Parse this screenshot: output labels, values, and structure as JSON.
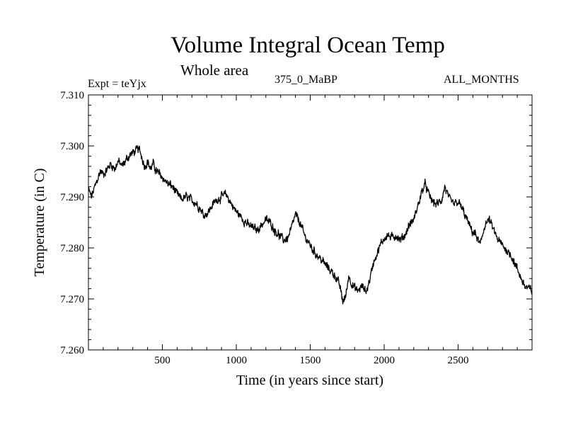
{
  "chart_data": {
    "type": "line",
    "title": "Volume Integral Ocean Temp",
    "subtitle": "Whole area",
    "annotations": {
      "left": "Expt = teYjx",
      "center": "375_0_MaBP",
      "right": "ALL_MONTHS"
    },
    "xlabel": "Time (in years since start)",
    "ylabel": "Temperature (in C)",
    "xlim": [
      0,
      3000
    ],
    "ylim": [
      7.26,
      7.31
    ],
    "xticks": [
      500,
      1000,
      1500,
      2000,
      2500
    ],
    "xtick_labels": [
      "500",
      "1000",
      "1500",
      "2000",
      "2500"
    ],
    "yticks": [
      7.26,
      7.27,
      7.28,
      7.29,
      7.3,
      7.31
    ],
    "ytick_labels": [
      "7.260",
      "7.270",
      "7.280",
      "7.290",
      "7.300",
      "7.310"
    ],
    "grid": false,
    "series": [
      {
        "name": "Volume Integral Ocean Temp",
        "x": [
          0,
          20,
          50,
          80,
          100,
          130,
          150,
          180,
          200,
          230,
          260,
          290,
          320,
          340,
          360,
          380,
          400,
          420,
          440,
          460,
          480,
          510,
          540,
          570,
          600,
          630,
          660,
          690,
          720,
          750,
          780,
          810,
          840,
          870,
          900,
          930,
          960,
          990,
          1020,
          1050,
          1080,
          1110,
          1140,
          1170,
          1200,
          1230,
          1260,
          1290,
          1320,
          1350,
          1380,
          1400,
          1430,
          1460,
          1490,
          1520,
          1550,
          1580,
          1610,
          1640,
          1670,
          1700,
          1720,
          1740,
          1760,
          1790,
          1820,
          1850,
          1880,
          1900,
          1930,
          1960,
          1990,
          2020,
          2050,
          2080,
          2110,
          2140,
          2170,
          2200,
          2230,
          2260,
          2280,
          2300,
          2330,
          2360,
          2390,
          2410,
          2440,
          2470,
          2500,
          2530,
          2560,
          2590,
          2620,
          2650,
          2680,
          2710,
          2740,
          2770,
          2800,
          2830,
          2860,
          2890,
          2920,
          2950,
          2980,
          3000
        ],
        "y": [
          7.2915,
          7.29,
          7.2925,
          7.295,
          7.2945,
          7.2955,
          7.2965,
          7.2955,
          7.297,
          7.296,
          7.2975,
          7.2985,
          7.299,
          7.2995,
          7.298,
          7.296,
          7.297,
          7.2955,
          7.2965,
          7.295,
          7.2945,
          7.2935,
          7.2925,
          7.292,
          7.2905,
          7.2895,
          7.29,
          7.2895,
          7.289,
          7.288,
          7.2865,
          7.287,
          7.2885,
          7.2895,
          7.29,
          7.2905,
          7.289,
          7.2875,
          7.2865,
          7.2855,
          7.2845,
          7.284,
          7.2835,
          7.2845,
          7.2855,
          7.285,
          7.2835,
          7.2825,
          7.2815,
          7.282,
          7.2845,
          7.2865,
          7.285,
          7.2825,
          7.281,
          7.2795,
          7.2785,
          7.2775,
          7.2765,
          7.2755,
          7.2745,
          7.2725,
          7.2695,
          7.2705,
          7.2745,
          7.2725,
          7.2715,
          7.2725,
          7.2715,
          7.2735,
          7.2775,
          7.2795,
          7.2815,
          7.2825,
          7.282,
          7.2825,
          7.2815,
          7.2825,
          7.2845,
          7.2855,
          7.2885,
          7.2915,
          7.2925,
          7.2905,
          7.289,
          7.2885,
          7.2895,
          7.292,
          7.2895,
          7.2885,
          7.289,
          7.2875,
          7.2855,
          7.2835,
          7.2825,
          7.2805,
          7.2845,
          7.2855,
          7.2835,
          7.2815,
          7.2805,
          7.2795,
          7.2785,
          7.2765,
          7.2745,
          7.2725,
          7.272,
          7.2715
        ]
      }
    ]
  }
}
